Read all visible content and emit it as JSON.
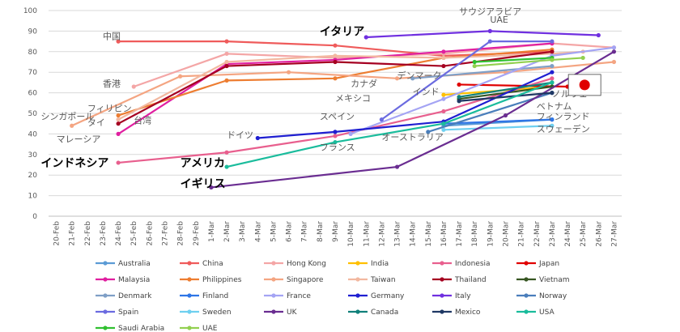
{
  "chart_data": {
    "type": "line",
    "title": "",
    "xlabel": "",
    "ylabel": "",
    "ylim": [
      0,
      100
    ],
    "y_ticks": [
      0,
      10,
      20,
      30,
      40,
      50,
      60,
      70,
      80,
      90,
      100
    ],
    "grid": true,
    "legend_position": "bottom",
    "x": [
      "20-Feb",
      "21-Feb",
      "22-Feb",
      "23-Feb",
      "24-Feb",
      "25-Feb",
      "26-Feb",
      "27-Feb",
      "28-Feb",
      "29-Feb",
      "1-Mar",
      "2-Mar",
      "3-Mar",
      "4-Mar",
      "5-Mar",
      "6-Mar",
      "7-Mar",
      "8-Mar",
      "9-Mar",
      "10-Mar",
      "11-Mar",
      "12-Mar",
      "13-Mar",
      "14-Mar",
      "15-Mar",
      "16-Mar",
      "17-Mar",
      "18-Mar",
      "19-Mar",
      "20-Mar",
      "21-Mar",
      "22-Mar",
      "23-Mar",
      "24-Mar",
      "25-Mar",
      "26-Mar",
      "27-Mar"
    ],
    "series": [
      {
        "name": "Australia",
        "color": "#5b9bd5",
        "points": [
          [
            "16-Mar",
            44
          ],
          [
            "23-Mar",
            47
          ]
        ]
      },
      {
        "name": "China",
        "color": "#ef5b5b",
        "points": [
          [
            "24-Feb",
            85
          ],
          [
            "2-Mar",
            85
          ],
          [
            "9-Mar",
            83
          ],
          [
            "16-Mar",
            78
          ],
          [
            "23-Mar",
            80
          ]
        ]
      },
      {
        "name": "Hong Kong",
        "color": "#f4a6a6",
        "points": [
          [
            "25-Feb",
            63
          ],
          [
            "2-Mar",
            79
          ],
          [
            "9-Mar",
            77
          ],
          [
            "16-Mar",
            79
          ],
          [
            "23-Mar",
            84
          ],
          [
            "27-Mar",
            82
          ]
        ]
      },
      {
        "name": "India",
        "color": "#ffc000",
        "points": [
          [
            "16-Mar",
            59
          ],
          [
            "23-Mar",
            63
          ]
        ]
      },
      {
        "name": "Indonesia",
        "color": "#e85f8e",
        "points": [
          [
            "24-Feb",
            26
          ],
          [
            "2-Mar",
            31
          ],
          [
            "9-Mar",
            39
          ],
          [
            "16-Mar",
            51
          ],
          [
            "23-Mar",
            67
          ]
        ]
      },
      {
        "name": "Japan",
        "color": "#e00000",
        "points": [
          [
            "17-Mar",
            64
          ],
          [
            "24-Mar",
            63
          ]
        ]
      },
      {
        "name": "Malaysia",
        "color": "#e01fa0",
        "points": [
          [
            "24-Feb",
            40
          ],
          [
            "2-Mar",
            74
          ],
          [
            "9-Mar",
            76
          ],
          [
            "16-Mar",
            80
          ],
          [
            "23-Mar",
            84
          ]
        ]
      },
      {
        "name": "Philippines",
        "color": "#ed7d31",
        "points": [
          [
            "24-Feb",
            49
          ],
          [
            "2-Mar",
            66
          ],
          [
            "9-Mar",
            67
          ],
          [
            "16-Mar",
            77
          ],
          [
            "23-Mar",
            81
          ]
        ]
      },
      {
        "name": "Singapore",
        "color": "#f4a582",
        "points": [
          [
            "21-Feb",
            44
          ],
          [
            "28-Feb",
            68
          ],
          [
            "6-Mar",
            70
          ],
          [
            "13-Mar",
            67
          ],
          [
            "20-Mar",
            70
          ],
          [
            "27-Mar",
            75
          ]
        ]
      },
      {
        "name": "Taiwan",
        "color": "#f2b8a0",
        "points": [
          [
            "24-Feb",
            47
          ],
          [
            "2-Mar",
            75
          ],
          [
            "9-Mar",
            78
          ],
          [
            "16-Mar",
            77
          ],
          [
            "23-Mar",
            79
          ],
          [
            "25-Mar",
            80
          ]
        ]
      },
      {
        "name": "Thailand",
        "color": "#a50021",
        "points": [
          [
            "24-Feb",
            45
          ],
          [
            "2-Mar",
            73
          ],
          [
            "9-Mar",
            75
          ],
          [
            "16-Mar",
            73
          ],
          [
            "23-Mar",
            80
          ]
        ]
      },
      {
        "name": "Vietnam",
        "color": "#375623",
        "points": [
          [
            "17-Mar",
            57
          ],
          [
            "23-Mar",
            63
          ]
        ]
      },
      {
        "name": "Denmark",
        "color": "#7f9fc6",
        "points": [
          [
            "14-Mar",
            67
          ],
          [
            "23-Mar",
            73
          ]
        ]
      },
      {
        "name": "Finland",
        "color": "#2e75e6",
        "points": [
          [
            "16-Mar",
            45
          ],
          [
            "23-Mar",
            47
          ]
        ]
      },
      {
        "name": "France",
        "color": "#a4a4f4",
        "points": [
          [
            "10-Mar",
            40
          ],
          [
            "16-Mar",
            57
          ],
          [
            "23-Mar",
            78
          ],
          [
            "27-Mar",
            82
          ]
        ]
      },
      {
        "name": "Germany",
        "color": "#1f1fd1",
        "points": [
          [
            "4-Mar",
            38
          ],
          [
            "9-Mar",
            41
          ],
          [
            "16-Mar",
            46
          ],
          [
            "23-Mar",
            70
          ]
        ]
      },
      {
        "name": "Italy",
        "color": "#7030e0",
        "points": [
          [
            "11-Mar",
            87
          ],
          [
            "19-Mar",
            90
          ],
          [
            "26-Mar",
            88
          ]
        ]
      },
      {
        "name": "Norway",
        "color": "#4a7ebb",
        "points": [
          [
            "15-Mar",
            41
          ],
          [
            "23-Mar",
            60
          ]
        ]
      },
      {
        "name": "Spain",
        "color": "#6b6be0",
        "points": [
          [
            "12-Mar",
            47
          ],
          [
            "19-Mar",
            85
          ],
          [
            "23-Mar",
            85
          ]
        ]
      },
      {
        "name": "Sweden",
        "color": "#6fd0f0",
        "points": [
          [
            "16-Mar",
            42
          ],
          [
            "23-Mar",
            44
          ]
        ]
      },
      {
        "name": "UK",
        "color": "#6a2d91",
        "points": [
          [
            "1-Mar",
            14
          ],
          [
            "13-Mar",
            24
          ],
          [
            "20-Mar",
            49
          ],
          [
            "27-Mar",
            80
          ]
        ]
      },
      {
        "name": "Canada",
        "color": "#10807a",
        "points": [
          [
            "17-Mar",
            58
          ],
          [
            "23-Mar",
            65
          ]
        ]
      },
      {
        "name": "Mexico",
        "color": "#1f3864",
        "points": [
          [
            "17-Mar",
            56
          ],
          [
            "23-Mar",
            60
          ]
        ]
      },
      {
        "name": "USA",
        "color": "#1abc9c",
        "points": [
          [
            "2-Mar",
            24
          ],
          [
            "9-Mar",
            36
          ],
          [
            "16-Mar",
            45
          ],
          [
            "23-Mar",
            65
          ]
        ]
      },
      {
        "name": "Saudi Arabia",
        "color": "#30c030",
        "points": [
          [
            "18-Mar",
            75
          ],
          [
            "23-Mar",
            77
          ]
        ]
      },
      {
        "name": "UAE",
        "color": "#92d050",
        "points": [
          [
            "18-Mar",
            73
          ],
          [
            "23-Mar",
            76
          ],
          [
            "25-Mar",
            77
          ]
        ]
      }
    ],
    "annotations": [
      {
        "text": "中国",
        "x": "23-Feb",
        "y": 86,
        "big": false
      },
      {
        "text": "香港",
        "x": "23-Feb",
        "y": 63,
        "big": false
      },
      {
        "text": "フィリピン",
        "x": "22-Feb",
        "y": 51,
        "big": false
      },
      {
        "text": "シンガポール",
        "x": "19-Feb",
        "y": 47,
        "big": false
      },
      {
        "text": "タイ",
        "x": "22-Feb",
        "y": 44,
        "big": false
      },
      {
        "text": "台湾",
        "x": "25-Feb",
        "y": 45,
        "big": false
      },
      {
        "text": "マレーシア",
        "x": "20-Feb",
        "y": 36,
        "big": false
      },
      {
        "text": "インドネシア",
        "x": "19-Feb",
        "y": 24,
        "big": true
      },
      {
        "text": "アメリカ",
        "x": "28-Feb",
        "y": 24,
        "big": true
      },
      {
        "text": "イギリス",
        "x": "28-Feb",
        "y": 14,
        "big": true
      },
      {
        "text": "ドイツ",
        "x": "2-Mar",
        "y": 38,
        "big": false
      },
      {
        "text": "フランス",
        "x": "8-Mar",
        "y": 32,
        "big": false
      },
      {
        "text": "イタリア",
        "x": "8-Mar",
        "y": 88,
        "big": true
      },
      {
        "text": "スペイン",
        "x": "8-Mar",
        "y": 47,
        "big": false
      },
      {
        "text": "オーストラリア",
        "x": "12-Mar",
        "y": 37,
        "big": false
      },
      {
        "text": "カナダ",
        "x": "10-Mar",
        "y": 63,
        "big": false
      },
      {
        "text": "デンマーク",
        "x": "13-Mar",
        "y": 67,
        "big": false
      },
      {
        "text": "メキシコ",
        "x": "9-Mar",
        "y": 56,
        "big": false
      },
      {
        "text": "インド",
        "x": "14-Mar",
        "y": 59,
        "big": false
      },
      {
        "text": "サウジアラビア",
        "x": "17-Mar",
        "y": 98,
        "big": false
      },
      {
        "text": "UAE",
        "x": "19-Mar",
        "y": 94,
        "big": false
      },
      {
        "text": "ノルウェー",
        "x": "23-Mar",
        "y": 58,
        "big": false
      },
      {
        "text": "ベトナム",
        "x": "22-Mar",
        "y": 52,
        "big": false
      },
      {
        "text": "フィンランド",
        "x": "22-Mar",
        "y": 47,
        "big": false
      },
      {
        "text": "スウェーデン",
        "x": "22-Mar",
        "y": 41,
        "big": false
      }
    ],
    "flag": {
      "name": "japan-flag",
      "x": "25-Mar",
      "y": 65
    }
  }
}
